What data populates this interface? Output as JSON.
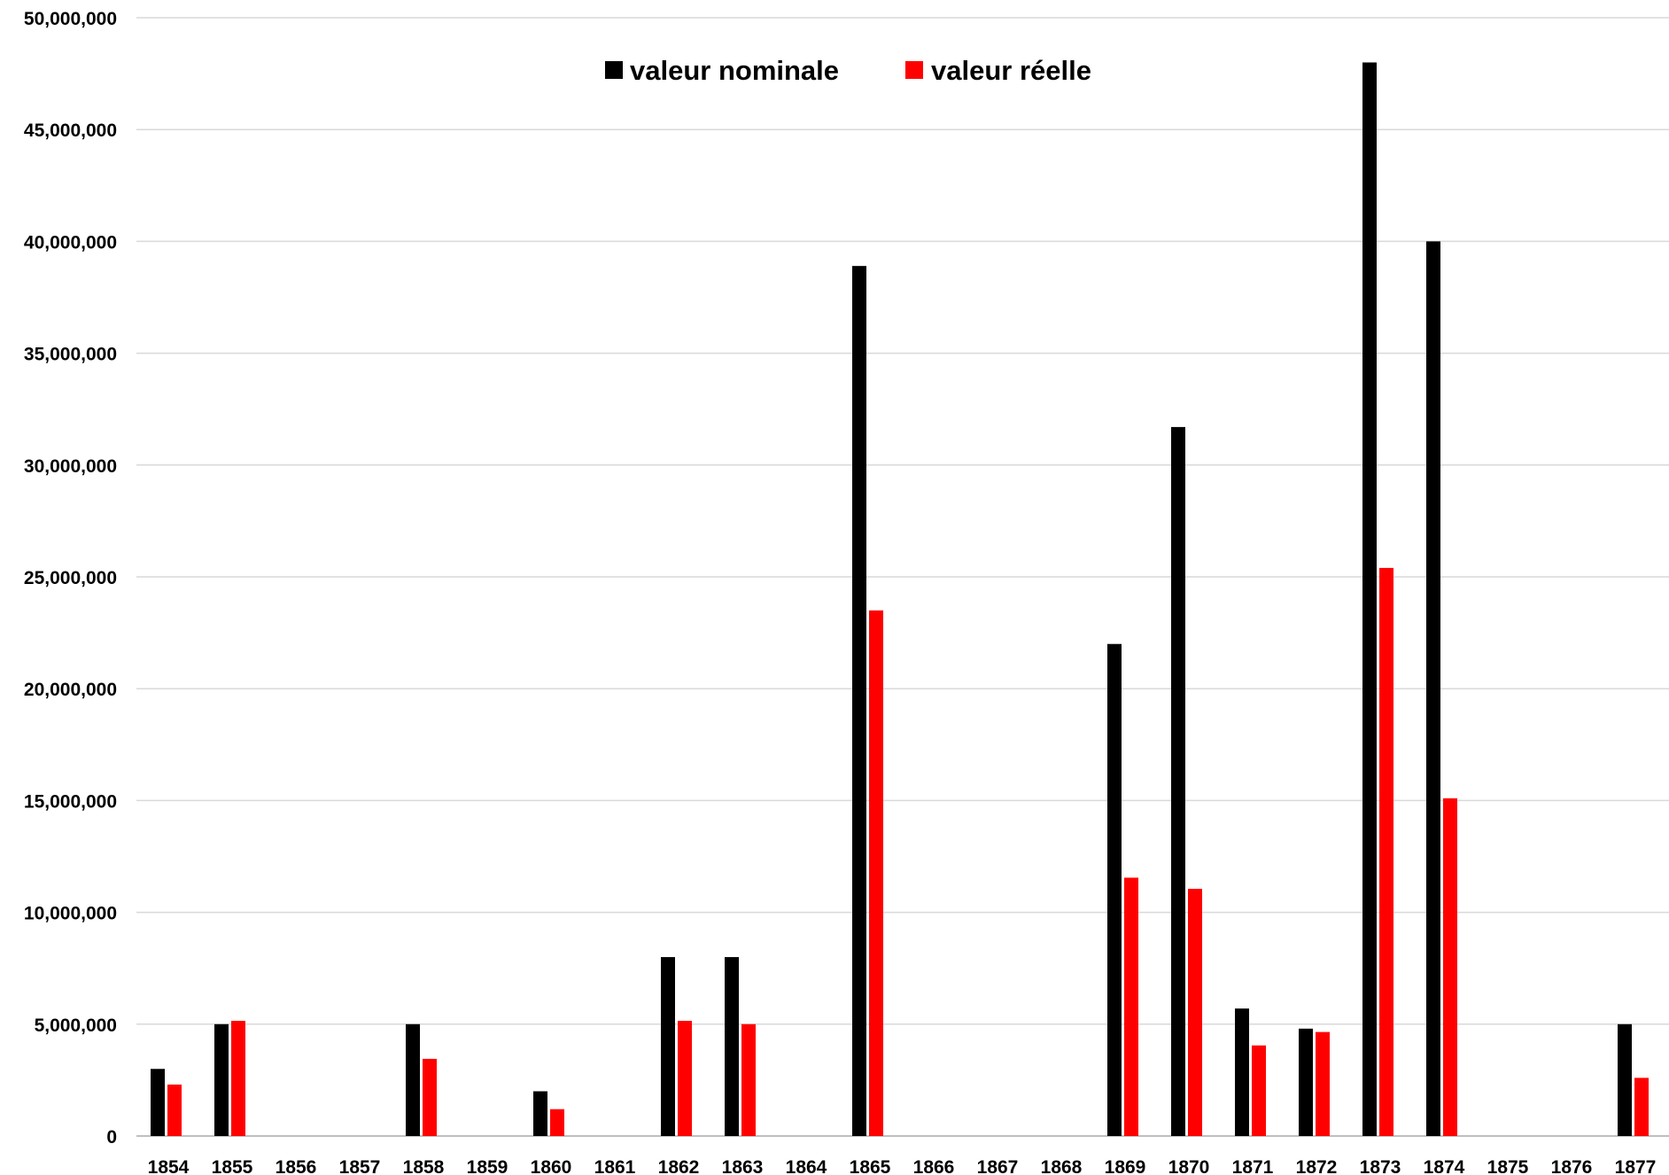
{
  "chart_data": {
    "type": "bar",
    "title": "",
    "xlabel": "",
    "ylabel": "",
    "ylim": [
      0,
      50000000
    ],
    "y_ticks": [
      0,
      5000000,
      10000000,
      15000000,
      20000000,
      25000000,
      30000000,
      35000000,
      40000000,
      45000000,
      50000000
    ],
    "y_tick_labels": [
      "0",
      "5,000,000",
      "10,000,000",
      "15,000,000",
      "20,000,000",
      "25,000,000",
      "30,000,000",
      "35,000,000",
      "40,000,000",
      "45,000,000",
      "50,000,000"
    ],
    "categories": [
      "1854",
      "1855",
      "1856",
      "1857",
      "1858",
      "1859",
      "1860",
      "1861",
      "1862",
      "1863",
      "1864",
      "1865",
      "1866",
      "1867",
      "1868",
      "1869",
      "1870",
      "1871",
      "1872",
      "1873",
      "1874",
      "1875",
      "1876",
      "1877"
    ],
    "grid": true,
    "legend_position": "top-center",
    "series": [
      {
        "name": "valeur nominale",
        "color": "#000000",
        "values": [
          3000000,
          5000000,
          0,
          0,
          5000000,
          0,
          2000000,
          0,
          8000000,
          8000000,
          0,
          38900000,
          0,
          0,
          0,
          22000000,
          31700000,
          5700000,
          4800000,
          48000000,
          40000000,
          0,
          0,
          5000000
        ]
      },
      {
        "name": "valeur réelle",
        "color": "#ff0000",
        "values": [
          2300000,
          5150000,
          0,
          0,
          3450000,
          0,
          1200000,
          0,
          5150000,
          5000000,
          0,
          23500000,
          0,
          0,
          0,
          11550000,
          11050000,
          4050000,
          4650000,
          25400000,
          15100000,
          0,
          0,
          2600000
        ]
      }
    ],
    "gridline_color": "#d9d9d9",
    "axis_color": "#bfbfbf"
  }
}
